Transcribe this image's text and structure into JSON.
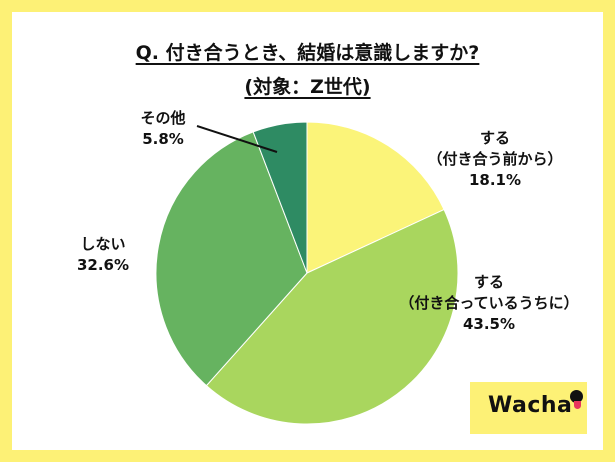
{
  "chart_data": {
    "type": "pie",
    "title": "Q. 付き合うとき、結婚は意識しますか?",
    "subtitle": "(対象：Z世代)",
    "slices": [
      {
        "label": "する",
        "sublabel": "（付き合う前から）",
        "value": 18.1,
        "value_text": "18.1%",
        "color": "#fbf479"
      },
      {
        "label": "する",
        "sublabel": "（付き合っているうちに）",
        "value": 43.5,
        "value_text": "43.5%",
        "color": "#a9d65e"
      },
      {
        "label": "しない",
        "sublabel": "",
        "value": 32.6,
        "value_text": "32.6%",
        "color": "#66b360"
      },
      {
        "label": "その他",
        "sublabel": "",
        "value": 5.8,
        "value_text": "5.8%",
        "color": "#2e8b63"
      }
    ],
    "start_angle": "12 o'clock",
    "direction": "clockwise",
    "legend": "none"
  },
  "brand": {
    "logo_text": "Wacha",
    "frame_color": "#fdf176"
  }
}
